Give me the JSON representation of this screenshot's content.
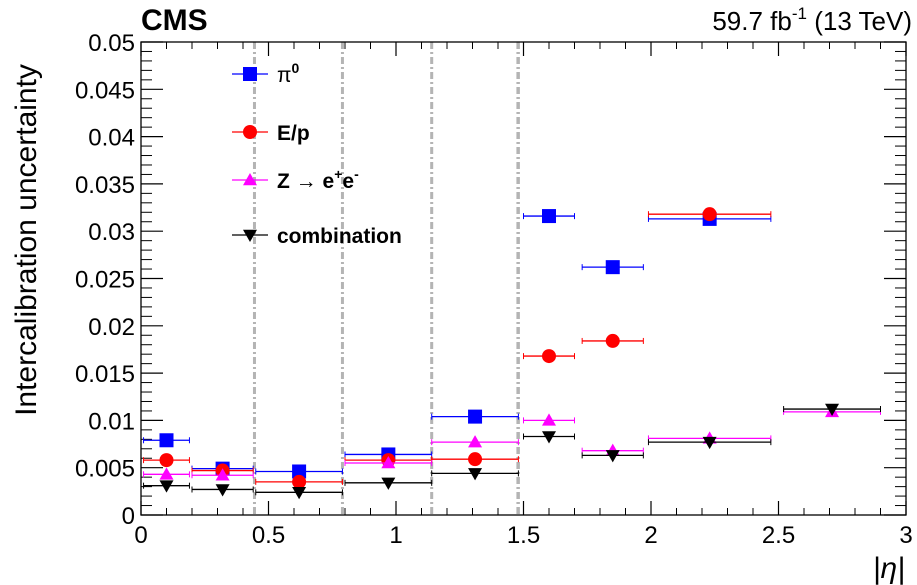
{
  "header": {
    "experiment": "CMS",
    "luminosity": "59.7 fb",
    "lumi_sup": "-1",
    "energy": " (13 TeV)"
  },
  "chart_data": {
    "type": "scatter",
    "title": "",
    "xlabel": "|η|",
    "ylabel": "Intercalibration uncertainty",
    "xlim": [
      0,
      3
    ],
    "ylim": [
      0,
      0.05
    ],
    "x_ticks": [
      "0",
      "0.5",
      "1",
      "1.5",
      "2",
      "2.5",
      "3"
    ],
    "y_ticks": [
      "0",
      "0.005",
      "0.01",
      "0.015",
      "0.02",
      "0.025",
      "0.03",
      "0.035",
      "0.04",
      "0.045",
      "0.05"
    ],
    "vertical_dividers": [
      0.445,
      0.79,
      1.14,
      1.479
    ],
    "legend_position": "top-left",
    "series": [
      {
        "name": "π0",
        "color": "#0000ff",
        "marker": "square",
        "points": [
          {
            "x": 0.1,
            "xerr": 0.09,
            "y": 0.0079
          },
          {
            "x": 0.32,
            "xerr": 0.12,
            "y": 0.0049
          },
          {
            "x": 0.62,
            "xerr": 0.17,
            "y": 0.0046
          },
          {
            "x": 0.97,
            "xerr": 0.17,
            "y": 0.0064
          },
          {
            "x": 1.31,
            "xerr": 0.17,
            "y": 0.0104
          },
          {
            "x": 1.6,
            "xerr": 0.1,
            "y": 0.0316
          },
          {
            "x": 1.85,
            "xerr": 0.12,
            "y": 0.0262
          },
          {
            "x": 2.23,
            "xerr": 0.24,
            "y": 0.0313
          }
        ]
      },
      {
        "name": "E/p",
        "color": "#ff0000",
        "marker": "circle",
        "points": [
          {
            "x": 0.1,
            "xerr": 0.09,
            "y": 0.0058
          },
          {
            "x": 0.32,
            "xerr": 0.12,
            "y": 0.0047
          },
          {
            "x": 0.62,
            "xerr": 0.17,
            "y": 0.0035
          },
          {
            "x": 0.97,
            "xerr": 0.17,
            "y": 0.0058
          },
          {
            "x": 1.31,
            "xerr": 0.17,
            "y": 0.0059
          },
          {
            "x": 1.6,
            "xerr": 0.1,
            "y": 0.0168
          },
          {
            "x": 1.85,
            "xerr": 0.12,
            "y": 0.0184
          },
          {
            "x": 2.23,
            "xerr": 0.24,
            "y": 0.0318
          }
        ]
      },
      {
        "name": "Z → e+e-",
        "color": "#ff00ff",
        "marker": "triangle-up",
        "points": [
          {
            "x": 0.1,
            "xerr": 0.09,
            "y": 0.0043
          },
          {
            "x": 0.32,
            "xerr": 0.12,
            "y": 0.0042
          },
          {
            "x": 0.97,
            "xerr": 0.17,
            "y": 0.0055
          },
          {
            "x": 1.31,
            "xerr": 0.17,
            "y": 0.0077
          },
          {
            "x": 1.6,
            "xerr": 0.1,
            "y": 0.01
          },
          {
            "x": 1.85,
            "xerr": 0.12,
            "y": 0.0068
          },
          {
            "x": 2.23,
            "xerr": 0.24,
            "y": 0.0081
          },
          {
            "x": 2.71,
            "xerr": 0.19,
            "y": 0.0109
          }
        ]
      },
      {
        "name": "combination",
        "color": "#000000",
        "marker": "triangle-down",
        "points": [
          {
            "x": 0.1,
            "xerr": 0.09,
            "y": 0.0031
          },
          {
            "x": 0.32,
            "xerr": 0.12,
            "y": 0.0027
          },
          {
            "x": 0.62,
            "xerr": 0.17,
            "y": 0.0024
          },
          {
            "x": 0.97,
            "xerr": 0.17,
            "y": 0.0034
          },
          {
            "x": 1.31,
            "xerr": 0.17,
            "y": 0.0044
          },
          {
            "x": 1.6,
            "xerr": 0.1,
            "y": 0.0083
          },
          {
            "x": 1.85,
            "xerr": 0.12,
            "y": 0.0063
          },
          {
            "x": 2.23,
            "xerr": 0.24,
            "y": 0.0077
          },
          {
            "x": 2.71,
            "xerr": 0.19,
            "y": 0.0112
          }
        ]
      }
    ]
  }
}
